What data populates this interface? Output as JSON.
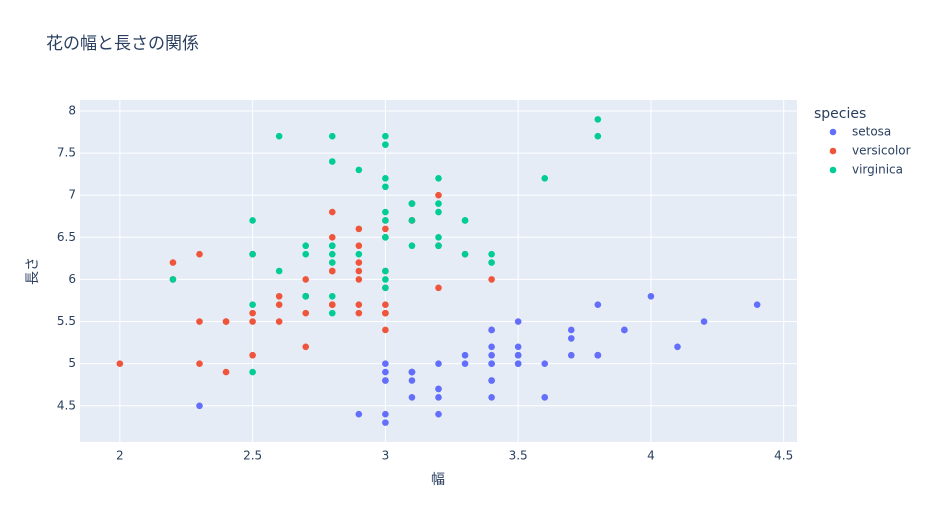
{
  "chart_data": {
    "type": "scatter",
    "title": "花の幅と長さの関係",
    "x_label": "幅",
    "y_label": "長さ",
    "legend_title": "species",
    "xlim": [
      1.85,
      4.55
    ],
    "ylim": [
      4.07,
      8.13
    ],
    "xticks": [
      2,
      2.5,
      3,
      3.5,
      4,
      4.5
    ],
    "yticks": [
      4.5,
      5,
      5.5,
      6,
      6.5,
      7,
      7.5,
      8
    ],
    "grid": true,
    "legend_position": "right",
    "series": [
      {
        "name": "setosa",
        "color": "#636efa",
        "x": [
          3.5,
          3.0,
          3.2,
          3.1,
          3.6,
          3.9,
          3.4,
          3.4,
          2.9,
          3.1,
          3.7,
          3.4,
          3.0,
          3.0,
          4.0,
          4.4,
          3.9,
          3.5,
          3.8,
          3.8,
          3.4,
          3.7,
          3.6,
          3.3,
          3.4,
          3.0,
          3.4,
          3.5,
          3.4,
          3.2,
          3.1,
          3.4,
          4.1,
          4.2,
          3.1,
          3.2,
          3.5,
          3.1,
          3.0,
          3.4,
          3.5,
          2.3,
          3.2,
          3.5,
          3.8,
          3.0,
          3.8,
          3.2,
          3.7,
          3.3
        ],
        "values": [
          5.1,
          4.9,
          4.7,
          4.6,
          5.0,
          5.4,
          4.6,
          5.0,
          4.4,
          4.9,
          5.4,
          4.8,
          4.8,
          4.3,
          5.8,
          5.7,
          5.4,
          5.1,
          5.7,
          5.1,
          5.4,
          5.1,
          4.6,
          5.1,
          4.8,
          5.0,
          5.0,
          5.2,
          5.2,
          4.7,
          4.8,
          5.4,
          5.2,
          5.5,
          4.9,
          5.0,
          5.5,
          4.9,
          4.4,
          5.1,
          5.0,
          4.5,
          4.4,
          5.0,
          5.1,
          4.8,
          5.1,
          4.6,
          5.3,
          5.0
        ]
      },
      {
        "name": "versicolor",
        "color": "#ef553b",
        "x": [
          3.2,
          3.2,
          3.1,
          2.3,
          2.8,
          2.8,
          3.3,
          2.4,
          2.9,
          2.7,
          2.0,
          3.0,
          2.2,
          2.9,
          2.9,
          3.1,
          3.0,
          2.7,
          2.2,
          2.5,
          3.2,
          2.8,
          2.5,
          2.8,
          2.9,
          3.0,
          2.8,
          3.0,
          2.9,
          2.6,
          2.4,
          2.4,
          2.7,
          2.7,
          3.0,
          3.4,
          3.1,
          2.3,
          3.0,
          2.5,
          2.6,
          3.0,
          2.6,
          2.3,
          2.7,
          3.0,
          2.9,
          2.9,
          2.5,
          2.8
        ],
        "values": [
          7.0,
          6.4,
          6.9,
          5.5,
          6.5,
          5.7,
          6.3,
          4.9,
          6.6,
          5.2,
          5.0,
          5.9,
          6.0,
          6.1,
          5.6,
          6.7,
          5.6,
          5.8,
          6.2,
          5.6,
          5.9,
          6.1,
          6.3,
          6.1,
          6.4,
          6.6,
          6.8,
          6.7,
          6.0,
          5.7,
          5.5,
          5.5,
          5.8,
          6.0,
          5.4,
          6.0,
          6.7,
          6.3,
          5.6,
          5.5,
          5.5,
          6.1,
          5.8,
          5.0,
          5.6,
          5.7,
          5.7,
          6.2,
          5.1,
          5.7
        ]
      },
      {
        "name": "virginica",
        "color": "#00cc96",
        "x": [
          3.3,
          2.7,
          3.0,
          2.9,
          3.0,
          3.0,
          2.5,
          2.9,
          2.5,
          3.6,
          3.2,
          2.7,
          3.0,
          2.5,
          2.8,
          3.2,
          3.0,
          3.8,
          2.6,
          2.2,
          3.2,
          2.8,
          2.8,
          2.7,
          3.3,
          3.2,
          2.8,
          3.0,
          2.8,
          3.0,
          2.8,
          3.8,
          2.8,
          2.8,
          2.6,
          3.0,
          3.4,
          3.1,
          3.0,
          3.1,
          3.1,
          3.1,
          2.7,
          3.2,
          3.3,
          3.0,
          2.5,
          3.0,
          3.4,
          3.0
        ],
        "values": [
          6.3,
          5.8,
          7.1,
          6.3,
          6.5,
          7.6,
          4.9,
          7.3,
          6.7,
          7.2,
          6.5,
          6.4,
          6.8,
          5.7,
          5.8,
          6.4,
          6.5,
          7.7,
          7.7,
          6.0,
          6.9,
          5.6,
          7.7,
          6.3,
          6.7,
          7.2,
          6.2,
          6.1,
          6.4,
          7.2,
          7.4,
          7.9,
          6.4,
          6.3,
          6.1,
          7.7,
          6.3,
          6.4,
          6.0,
          6.9,
          6.7,
          6.9,
          5.8,
          6.8,
          6.7,
          6.7,
          6.3,
          6.5,
          6.2,
          5.9
        ]
      }
    ]
  }
}
